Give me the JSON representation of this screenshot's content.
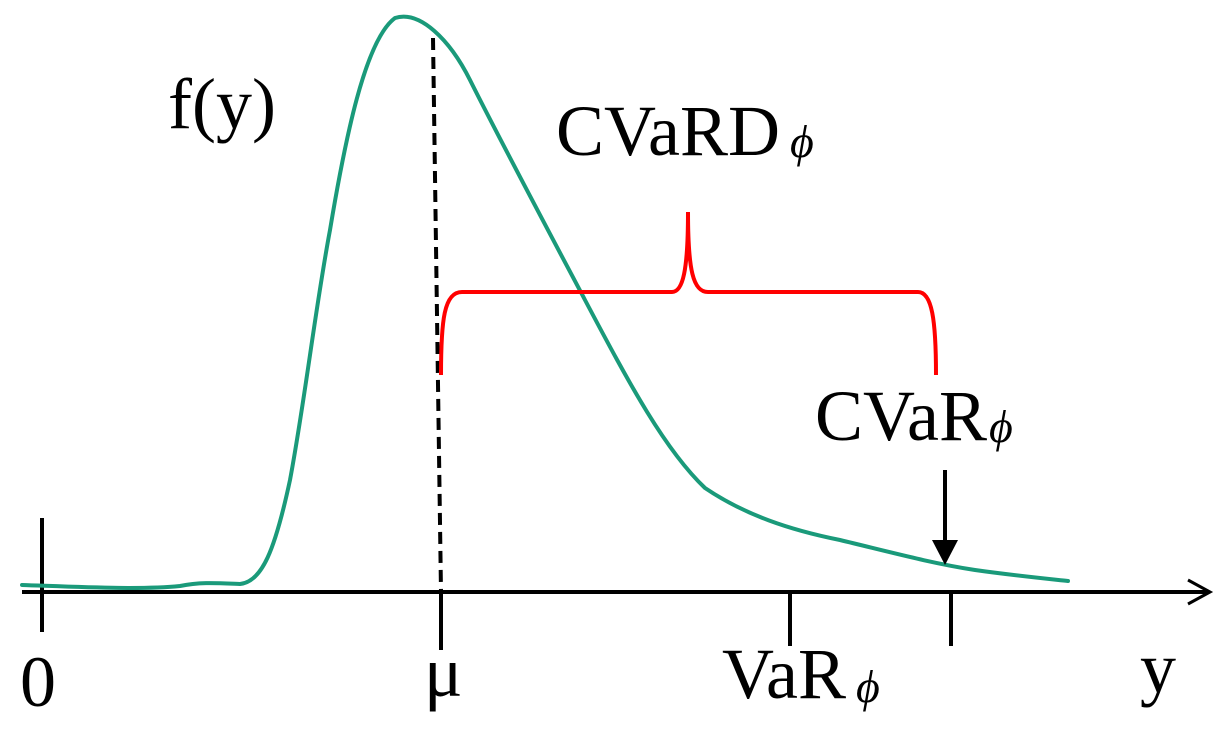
{
  "labels": {
    "density": "f(y)",
    "cvard_main": "CVaRD",
    "cvard_sub": "ϕ",
    "cvar_main": "CVaR",
    "cvar_sub": "ϕ",
    "origin": "0",
    "mean": "μ",
    "var_main": "VaR",
    "var_sub": "ϕ",
    "x_axis": "y"
  },
  "colors": {
    "curve": "#1a9a7a",
    "brace": "#ff0000",
    "axis": "#000000"
  }
}
